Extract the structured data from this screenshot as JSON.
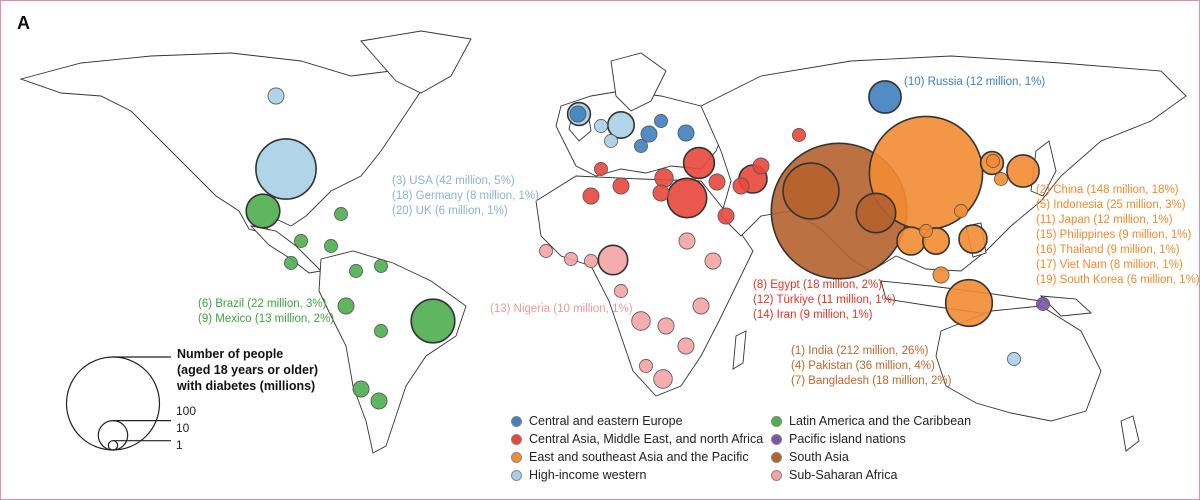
{
  "panel_label": "A",
  "colors": {
    "central_eastern_europe": "#3f7fbf",
    "camena": "#e8473a",
    "east_southeast_asia": "#f28c33",
    "high_income_western": "#a9d0e6",
    "latin_america": "#4fae4f",
    "pacific": "#7a55a8",
    "south_asia": "#b5622e",
    "ssa": "#f3a3a3"
  },
  "label_groups": [
    {
      "id": "high-income",
      "color": "#8db3cc",
      "lines": [
        "(3) USA (42 million, 5%)",
        "(18) Germany (8 million, 1%)",
        "(20) UK (6 million, 1%)"
      ]
    },
    {
      "id": "latin-america",
      "color": "#3fa33f",
      "lines": [
        "(6) Brazil (22 million, 3%)",
        "(9) Mexico (13 million, 2%)"
      ]
    },
    {
      "id": "ssa",
      "color": "#ef9a9a",
      "lines": [
        "(13) Nigeria (10 million, 1%)"
      ]
    },
    {
      "id": "camena",
      "color": "#e0342b",
      "lines": [
        "(8) Egypt (18 million, 2%)",
        "(12) Türkiye  (11 million, 1%)",
        "(14) Iran (9 million, 1%)"
      ]
    },
    {
      "id": "south-asia",
      "color": "#c0662c",
      "lines": [
        "(1) India (212 million, 26%)",
        "(4) Pakistan (36 million, 4%)",
        "(7) Bangladesh (18 million, 2%)"
      ]
    },
    {
      "id": "east-asia",
      "color": "#f08a2a",
      "lines": [
        "(2) China (148 million, 18%)",
        "(5) Indonesia (25 million, 3%)",
        "(11) Japan (12 million, 1%)",
        "(15) Philippines (9 million, 1%)",
        "(16) Thailand (9 million, 1%)",
        "(17) Viet Nam (8 million, 1%)",
        "(19) South Korea (6 million, 1%)"
      ]
    },
    {
      "id": "cee",
      "color": "#3f7fbf",
      "lines": [
        "(10) Russia (12 million, 1%)"
      ]
    }
  ],
  "size_legend": {
    "title_lines": [
      "Number of people",
      "(aged 18 years or older)",
      "with diabetes (millions)"
    ],
    "scale": [
      {
        "label": "100",
        "value": 100
      },
      {
        "label": "10",
        "value": 10
      },
      {
        "label": "1",
        "value": 1
      }
    ]
  },
  "region_legend": [
    {
      "label": "Central and eastern Europe",
      "color": "#3f7fbf"
    },
    {
      "label": "Central Asia, Middle East, and north Africa",
      "color": "#e8473a"
    },
    {
      "label": "East and southeast Asia and the Pacific",
      "color": "#f28c33"
    },
    {
      "label": "High-income western",
      "color": "#a9d0e6"
    },
    {
      "label": "Latin America and the Caribbean",
      "color": "#4fae4f"
    },
    {
      "label": "Pacific island nations",
      "color": "#7a55a8"
    },
    {
      "label": "South Asia",
      "color": "#b5622e"
    },
    {
      "label": "Sub-Saharan Africa",
      "color": "#f3a3a3"
    }
  ],
  "highlighted_countries": [
    {
      "name": "India",
      "rank": 1,
      "millions": 212,
      "region": "south_asia"
    },
    {
      "name": "China",
      "rank": 2,
      "millions": 148,
      "region": "east_southeast_asia"
    },
    {
      "name": "USA",
      "rank": 3,
      "millions": 42,
      "region": "high_income_western"
    },
    {
      "name": "Pakistan",
      "rank": 4,
      "millions": 36,
      "region": "south_asia"
    },
    {
      "name": "Indonesia",
      "rank": 5,
      "millions": 25,
      "region": "east_southeast_asia"
    },
    {
      "name": "Brazil",
      "rank": 6,
      "millions": 22,
      "region": "latin_america"
    },
    {
      "name": "Bangladesh",
      "rank": 7,
      "millions": 18,
      "region": "south_asia"
    },
    {
      "name": "Egypt",
      "rank": 8,
      "millions": 18,
      "region": "camena"
    },
    {
      "name": "Mexico",
      "rank": 9,
      "millions": 13,
      "region": "latin_america"
    },
    {
      "name": "Russia",
      "rank": 10,
      "millions": 12,
      "region": "central_eastern_europe"
    },
    {
      "name": "Japan",
      "rank": 11,
      "millions": 12,
      "region": "east_southeast_asia"
    },
    {
      "name": "Türkiye",
      "rank": 12,
      "millions": 11,
      "region": "camena"
    },
    {
      "name": "Nigeria",
      "rank": 13,
      "millions": 10,
      "region": "ssa"
    },
    {
      "name": "Iran",
      "rank": 14,
      "millions": 9,
      "region": "camena"
    },
    {
      "name": "Philippines",
      "rank": 15,
      "millions": 9,
      "region": "east_southeast_asia"
    },
    {
      "name": "Thailand",
      "rank": 16,
      "millions": 9,
      "region": "east_southeast_asia"
    },
    {
      "name": "Viet Nam",
      "rank": 17,
      "millions": 8,
      "region": "east_southeast_asia"
    },
    {
      "name": "Germany",
      "rank": 18,
      "millions": 8,
      "region": "high_income_western"
    },
    {
      "name": "South Korea",
      "rank": 19,
      "millions": 6,
      "region": "east_southeast_asia"
    },
    {
      "name": "UK",
      "rank": 20,
      "millions": 6,
      "region": "high_income_western"
    }
  ]
}
